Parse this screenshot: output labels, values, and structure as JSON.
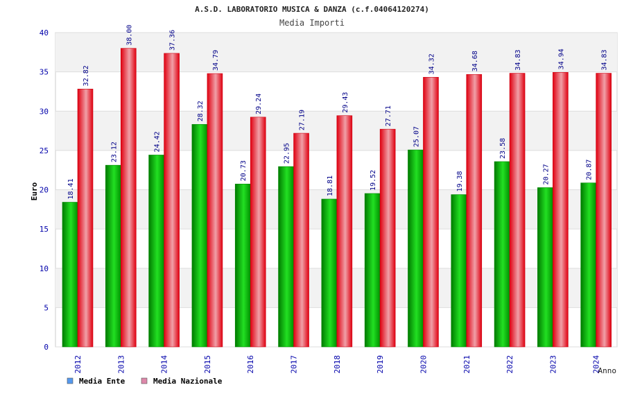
{
  "chart_data": {
    "type": "bar",
    "title": "A.S.D. LABORATORIO MUSICA & DANZA (c.f.04064120274)",
    "subtitle": "Media Importi",
    "xlabel": "Anno",
    "ylabel": "Euro",
    "ylim": [
      0,
      40
    ],
    "yticks": [
      0,
      5,
      10,
      15,
      20,
      25,
      30,
      35,
      40
    ],
    "grid": true,
    "legend_position": "bottom-left",
    "categories": [
      "2012",
      "2013",
      "2014",
      "2015",
      "2016",
      "2017",
      "2018",
      "2019",
      "2020",
      "2021",
      "2022",
      "2023",
      "2024"
    ],
    "series": [
      {
        "name": "Media Ente",
        "color": "#00b000",
        "legend_color": "#5599ee",
        "values": [
          18.41,
          23.12,
          24.42,
          28.32,
          20.73,
          22.95,
          18.81,
          19.52,
          25.07,
          19.38,
          23.58,
          20.27,
          20.87
        ],
        "labels": [
          "18.41",
          "23.12",
          "24.42",
          "28.32",
          "20.73",
          "22.95",
          "18.81",
          "19.52",
          "25.07",
          "19.38",
          "23.58",
          "20.27",
          "20.87"
        ]
      },
      {
        "name": "Media Nazionale",
        "color": "#ee0000",
        "legend_color": "#dd88aa",
        "values": [
          32.82,
          38.0,
          37.36,
          34.79,
          29.24,
          27.19,
          29.43,
          27.71,
          34.32,
          34.68,
          34.83,
          34.94,
          34.83
        ],
        "labels": [
          "32.82",
          "38.00",
          "37.36",
          "34.79",
          "29.24",
          "27.19",
          "29.43",
          "27.71",
          "34.32",
          "34.68",
          "34.83",
          "34.94",
          "34.83"
        ]
      }
    ]
  }
}
